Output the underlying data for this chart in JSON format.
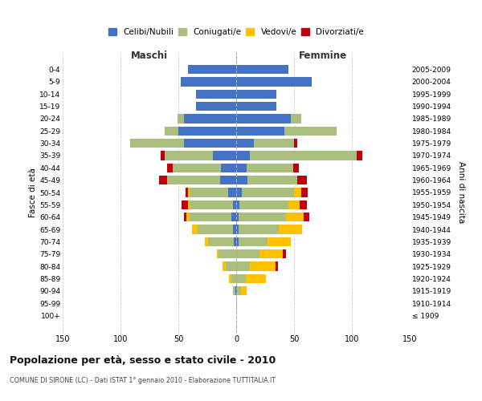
{
  "age_groups": [
    "100+",
    "95-99",
    "90-94",
    "85-89",
    "80-84",
    "75-79",
    "70-74",
    "65-69",
    "60-64",
    "55-59",
    "50-54",
    "45-49",
    "40-44",
    "35-39",
    "30-34",
    "25-29",
    "20-24",
    "15-19",
    "10-14",
    "5-9",
    "0-4"
  ],
  "birth_years": [
    "≤ 1909",
    "1910-1914",
    "1915-1919",
    "1920-1924",
    "1925-1929",
    "1930-1934",
    "1935-1939",
    "1940-1944",
    "1945-1949",
    "1950-1954",
    "1955-1959",
    "1960-1964",
    "1965-1969",
    "1970-1974",
    "1975-1979",
    "1980-1984",
    "1985-1989",
    "1990-1994",
    "1995-1999",
    "2000-2004",
    "2005-2009"
  ],
  "males": {
    "celibe": [
      0,
      0,
      1,
      0,
      0,
      0,
      2,
      3,
      4,
      3,
      7,
      14,
      13,
      20,
      45,
      50,
      45,
      35,
      35,
      48,
      42
    ],
    "coniugato": [
      0,
      0,
      2,
      4,
      9,
      15,
      22,
      30,
      36,
      37,
      33,
      46,
      42,
      42,
      47,
      12,
      6,
      0,
      0,
      0,
      0
    ],
    "vedovo": [
      0,
      0,
      0,
      2,
      3,
      2,
      3,
      5,
      3,
      2,
      2,
      0,
      0,
      0,
      0,
      0,
      0,
      0,
      0,
      0,
      0
    ],
    "divorziato": [
      0,
      0,
      0,
      0,
      0,
      0,
      0,
      0,
      2,
      5,
      2,
      7,
      5,
      3,
      0,
      0,
      0,
      0,
      0,
      0,
      0
    ]
  },
  "females": {
    "nubile": [
      0,
      0,
      1,
      0,
      0,
      0,
      2,
      2,
      2,
      3,
      5,
      10,
      9,
      12,
      15,
      42,
      47,
      35,
      35,
      65,
      45
    ],
    "coniugata": [
      0,
      1,
      3,
      8,
      12,
      20,
      25,
      35,
      41,
      42,
      45,
      43,
      40,
      92,
      35,
      45,
      9,
      0,
      0,
      0,
      0
    ],
    "vedova": [
      0,
      0,
      5,
      18,
      22,
      20,
      20,
      20,
      15,
      10,
      6,
      0,
      0,
      0,
      0,
      0,
      0,
      0,
      0,
      0,
      0
    ],
    "divorziata": [
      0,
      0,
      0,
      0,
      2,
      3,
      0,
      0,
      5,
      6,
      6,
      8,
      5,
      5,
      3,
      0,
      0,
      0,
      0,
      0,
      0
    ]
  },
  "colors": {
    "celibe": "#4472C4",
    "coniugato": "#AABF7E",
    "vedovo": "#FFC000",
    "divorziato": "#C0000C"
  },
  "xlim": [
    -150,
    150
  ],
  "xticks": [
    -150,
    -100,
    -50,
    0,
    50,
    100,
    150
  ],
  "title": "Popolazione per età, sesso e stato civile - 2010",
  "subtitle": "COMUNE DI SIRONE (LC) - Dati ISTAT 1° gennaio 2010 - Elaborazione TUTTITALIA.IT",
  "label_maschi": "Maschi",
  "label_femmine": "Femmine",
  "ylabel_left": "Fasce di età",
  "ylabel_right": "Anni di nascita",
  "legend_labels": [
    "Celibi/Nubili",
    "Coniugati/e",
    "Vedovi/e",
    "Divorziati/e"
  ],
  "background_color": "#ffffff",
  "grid_color": "#cccccc"
}
